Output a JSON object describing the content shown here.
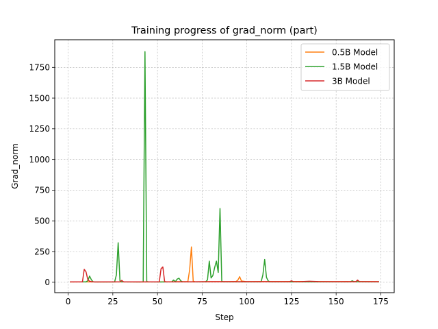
{
  "chart_data": {
    "type": "line",
    "title": "Training progress of grad_norm (part)",
    "xlabel": "Step",
    "ylabel": "Grad_norm",
    "xlim": [
      -7.5,
      182.5
    ],
    "ylim": [
      -85,
      1975
    ],
    "xticks": [
      0,
      25,
      50,
      75,
      100,
      125,
      150,
      175
    ],
    "yticks": [
      0,
      250,
      500,
      750,
      1000,
      1250,
      1500,
      1750
    ],
    "grid": true,
    "legend_position": "top-right",
    "series": [
      {
        "name": "0.5B Model",
        "color": "#ff7f0e",
        "points": [
          [
            1,
            2
          ],
          [
            10,
            3
          ],
          [
            20,
            2
          ],
          [
            30,
            3
          ],
          [
            40,
            2
          ],
          [
            50,
            3
          ],
          [
            60,
            4
          ],
          [
            67,
            5
          ],
          [
            68,
            100
          ],
          [
            69,
            288
          ],
          [
            70,
            8
          ],
          [
            71,
            3
          ],
          [
            80,
            4
          ],
          [
            90,
            4
          ],
          [
            94,
            6
          ],
          [
            95,
            18
          ],
          [
            96,
            45
          ],
          [
            97,
            10
          ],
          [
            100,
            4
          ],
          [
            110,
            5
          ],
          [
            120,
            5
          ],
          [
            130,
            6
          ],
          [
            140,
            5
          ],
          [
            150,
            4
          ],
          [
            160,
            5
          ],
          [
            174,
            4
          ]
        ]
      },
      {
        "name": "1.5B Model",
        "color": "#2ca02c",
        "points": [
          [
            1,
            3
          ],
          [
            10,
            3
          ],
          [
            11,
            12
          ],
          [
            12,
            50
          ],
          [
            13,
            20
          ],
          [
            14,
            3
          ],
          [
            20,
            2
          ],
          [
            26,
            2
          ],
          [
            27,
            60
          ],
          [
            28,
            322
          ],
          [
            29,
            12
          ],
          [
            30,
            3
          ],
          [
            40,
            2
          ],
          [
            42,
            3
          ],
          [
            43,
            1878
          ],
          [
            44,
            5
          ],
          [
            45,
            3
          ],
          [
            50,
            2
          ],
          [
            58,
            3
          ],
          [
            59,
            18
          ],
          [
            60,
            5
          ],
          [
            61,
            25
          ],
          [
            62,
            33
          ],
          [
            63,
            12
          ],
          [
            64,
            3
          ],
          [
            70,
            3
          ],
          [
            77,
            3
          ],
          [
            78,
            20
          ],
          [
            79,
            172
          ],
          [
            80,
            35
          ],
          [
            81,
            55
          ],
          [
            82,
            120
          ],
          [
            83,
            172
          ],
          [
            84,
            80
          ],
          [
            85,
            600
          ],
          [
            86,
            5
          ],
          [
            87,
            3
          ],
          [
            100,
            3
          ],
          [
            108,
            3
          ],
          [
            109,
            60
          ],
          [
            110,
            185
          ],
          [
            111,
            40
          ],
          [
            112,
            10
          ],
          [
            113,
            3
          ],
          [
            120,
            3
          ],
          [
            130,
            3
          ],
          [
            140,
            3
          ],
          [
            150,
            3
          ],
          [
            158,
            3
          ],
          [
            159,
            12
          ],
          [
            160,
            4
          ],
          [
            170,
            3
          ],
          [
            174,
            3
          ]
        ]
      },
      {
        "name": "3B Model",
        "color": "#d62728",
        "points": [
          [
            1,
            3
          ],
          [
            8,
            3
          ],
          [
            9,
            105
          ],
          [
            10,
            85
          ],
          [
            11,
            22
          ],
          [
            12,
            8
          ],
          [
            13,
            5
          ],
          [
            15,
            2
          ],
          [
            20,
            3
          ],
          [
            29,
            3
          ],
          [
            30,
            15
          ],
          [
            31,
            3
          ],
          [
            40,
            3
          ],
          [
            51,
            3
          ],
          [
            52,
            110
          ],
          [
            53,
            125
          ],
          [
            54,
            5
          ],
          [
            55,
            3
          ],
          [
            60,
            3
          ],
          [
            80,
            4
          ],
          [
            90,
            4
          ],
          [
            100,
            4
          ],
          [
            110,
            4
          ],
          [
            120,
            4
          ],
          [
            124,
            4
          ],
          [
            125,
            12
          ],
          [
            126,
            5
          ],
          [
            130,
            4
          ],
          [
            135,
            8
          ],
          [
            140,
            5
          ],
          [
            150,
            4
          ],
          [
            161,
            4
          ],
          [
            162,
            18
          ],
          [
            163,
            5
          ],
          [
            170,
            4
          ],
          [
            174,
            4
          ]
        ]
      }
    ]
  }
}
